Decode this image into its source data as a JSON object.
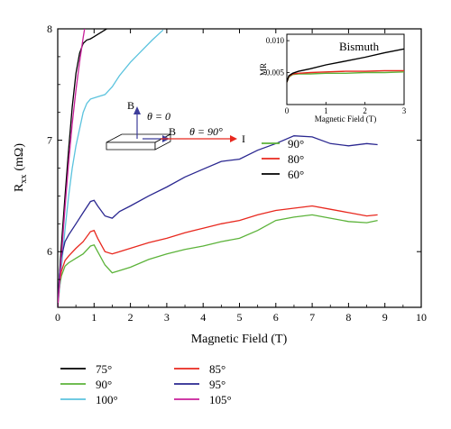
{
  "chart_data": {
    "type": "line",
    "xlabel": "Magnetic Field (T)",
    "ylabel": "R",
    "ylabel_sub": "xx",
    "ylabel_unit": "(mΩ)",
    "xlim": [
      0,
      10
    ],
    "ylim": [
      5.5,
      8
    ],
    "xticks": [
      0,
      1,
      2,
      3,
      4,
      5,
      6,
      7,
      8,
      9,
      10
    ],
    "yticks": [
      6,
      7,
      8
    ],
    "grid": false,
    "series": [
      {
        "name": "75°",
        "color": "#000000",
        "x": [
          0,
          0.05,
          0.1,
          0.2,
          0.3,
          0.4,
          0.5,
          0.6,
          0.7,
          0.8,
          0.9,
          1.0,
          1.1,
          1.2,
          1.3,
          1.4,
          1.5
        ],
        "y": [
          5.5,
          5.8,
          6.05,
          6.5,
          6.92,
          7.3,
          7.6,
          7.78,
          7.87,
          7.9,
          7.91,
          7.93,
          7.95,
          7.97,
          7.99,
          8.01,
          8.03
        ]
      },
      {
        "name": "90°",
        "color": "#5cb33a",
        "x": [
          0,
          0.05,
          0.1,
          0.2,
          0.3,
          0.5,
          0.7,
          0.9,
          1.0,
          1.1,
          1.3,
          1.5,
          1.7,
          2.0,
          2.5,
          3.0,
          3.5,
          4.0,
          4.5,
          5.0,
          5.5,
          6.0,
          6.5,
          7.0,
          7.5,
          8.0,
          8.5,
          8.8
        ],
        "y": [
          5.5,
          5.68,
          5.78,
          5.87,
          5.9,
          5.94,
          5.98,
          6.05,
          6.06,
          6.0,
          5.88,
          5.81,
          5.83,
          5.86,
          5.93,
          5.98,
          6.02,
          6.05,
          6.09,
          6.12,
          6.19,
          6.28,
          6.31,
          6.33,
          6.3,
          6.27,
          6.26,
          6.28
        ]
      },
      {
        "name": "100°",
        "color": "#5bc3de",
        "x": [
          0,
          0.1,
          0.2,
          0.3,
          0.4,
          0.5,
          0.6,
          0.7,
          0.8,
          0.9,
          1.0,
          1.1,
          1.3,
          1.5,
          1.7,
          2.0,
          2.3,
          2.6,
          2.9
        ],
        "y": [
          5.5,
          5.85,
          6.2,
          6.5,
          6.75,
          6.95,
          7.1,
          7.25,
          7.33,
          7.37,
          7.38,
          7.39,
          7.41,
          7.48,
          7.58,
          7.7,
          7.8,
          7.9,
          7.99
        ]
      },
      {
        "name": "85°",
        "color": "#e8281e",
        "x": [
          0,
          0.05,
          0.1,
          0.2,
          0.3,
          0.5,
          0.7,
          0.9,
          1.0,
          1.1,
          1.3,
          1.5,
          1.7,
          2.0,
          2.5,
          3.0,
          3.5,
          4.0,
          4.5,
          5.0,
          5.5,
          6.0,
          6.5,
          7.0,
          7.5,
          8.0,
          8.5,
          8.8
        ],
        "y": [
          5.5,
          5.72,
          5.82,
          5.92,
          5.96,
          6.03,
          6.09,
          6.18,
          6.19,
          6.12,
          6.0,
          5.98,
          6.0,
          6.03,
          6.08,
          6.12,
          6.17,
          6.21,
          6.25,
          6.28,
          6.33,
          6.37,
          6.39,
          6.41,
          6.38,
          6.35,
          6.32,
          6.33
        ]
      },
      {
        "name": "95°",
        "color": "#2a2790",
        "x": [
          0,
          0.05,
          0.1,
          0.2,
          0.3,
          0.5,
          0.7,
          0.9,
          1.0,
          1.1,
          1.3,
          1.5,
          1.7,
          2.0,
          2.5,
          3.0,
          3.5,
          4.0,
          4.5,
          5.0,
          5.5,
          6.0,
          6.5,
          7.0,
          7.5,
          8.0,
          8.5,
          8.8
        ],
        "y": [
          5.5,
          5.8,
          5.95,
          6.09,
          6.15,
          6.25,
          6.35,
          6.45,
          6.46,
          6.41,
          6.32,
          6.3,
          6.36,
          6.41,
          6.5,
          6.58,
          6.67,
          6.74,
          6.81,
          6.83,
          6.91,
          6.97,
          7.04,
          7.03,
          6.97,
          6.95,
          6.97,
          6.96
        ]
      },
      {
        "name": "105°",
        "color": "#c81f9a",
        "x": [
          0,
          0.1,
          0.2,
          0.3,
          0.4,
          0.5,
          0.6,
          0.7,
          0.75
        ],
        "y": [
          5.5,
          5.95,
          6.4,
          6.8,
          7.15,
          7.45,
          7.7,
          7.92,
          8.02
        ]
      }
    ],
    "inline_labels": [
      {
        "text": "90°",
        "color": "#5cb33a"
      },
      {
        "text": "80°",
        "color": "#e8281e"
      },
      {
        "text": "60°",
        "color": "#000000"
      }
    ],
    "annotation": {
      "b_label": "B",
      "theta0": "θ = 0",
      "theta90": "θ = 90°",
      "current": "I"
    },
    "legend": {
      "placement": "bottom",
      "entries": [
        {
          "text": "75°",
          "color": "#000000"
        },
        {
          "text": "85°",
          "color": "#e8281e"
        },
        {
          "text": "90°",
          "color": "#5cb33a"
        },
        {
          "text": "95°",
          "color": "#2a2790"
        },
        {
          "text": "100°",
          "color": "#5bc3de"
        },
        {
          "text": "105°",
          "color": "#c81f9a"
        }
      ]
    },
    "inset": {
      "title": "Bismuth",
      "xlabel": "Magnetic Field (T)",
      "ylabel": "MR",
      "xlim": [
        0,
        3
      ],
      "ylim": [
        0,
        0.011
      ],
      "xticks": [
        0,
        1,
        2,
        3
      ],
      "yticks": [
        0.005,
        0.01
      ],
      "ytick_labels": [
        "0.005",
        "0.010"
      ],
      "series": [
        {
          "name": "90°",
          "color": "#5cb33a",
          "x": [
            0,
            0.05,
            0.15,
            0.3,
            0.6,
            1.0,
            1.5,
            2.0,
            2.5,
            3.0
          ],
          "y": [
            0.0035,
            0.0043,
            0.0047,
            0.0048,
            0.0048,
            0.0049,
            0.0049,
            0.005,
            0.005,
            0.0051
          ]
        },
        {
          "name": "80°",
          "color": "#e8281e",
          "x": [
            0,
            0.05,
            0.15,
            0.3,
            0.6,
            1.0,
            1.5,
            2.0,
            2.5,
            3.0
          ],
          "y": [
            0.0035,
            0.0044,
            0.0048,
            0.0049,
            0.005,
            0.0051,
            0.0052,
            0.0052,
            0.0053,
            0.0053
          ]
        },
        {
          "name": "60°",
          "color": "#000000",
          "x": [
            0,
            0.05,
            0.15,
            0.3,
            0.6,
            1.0,
            1.5,
            2.0,
            2.5,
            3.0
          ],
          "y": [
            0.0035,
            0.0045,
            0.0049,
            0.0052,
            0.0056,
            0.0062,
            0.0068,
            0.0074,
            0.0081,
            0.0087
          ]
        }
      ]
    }
  }
}
